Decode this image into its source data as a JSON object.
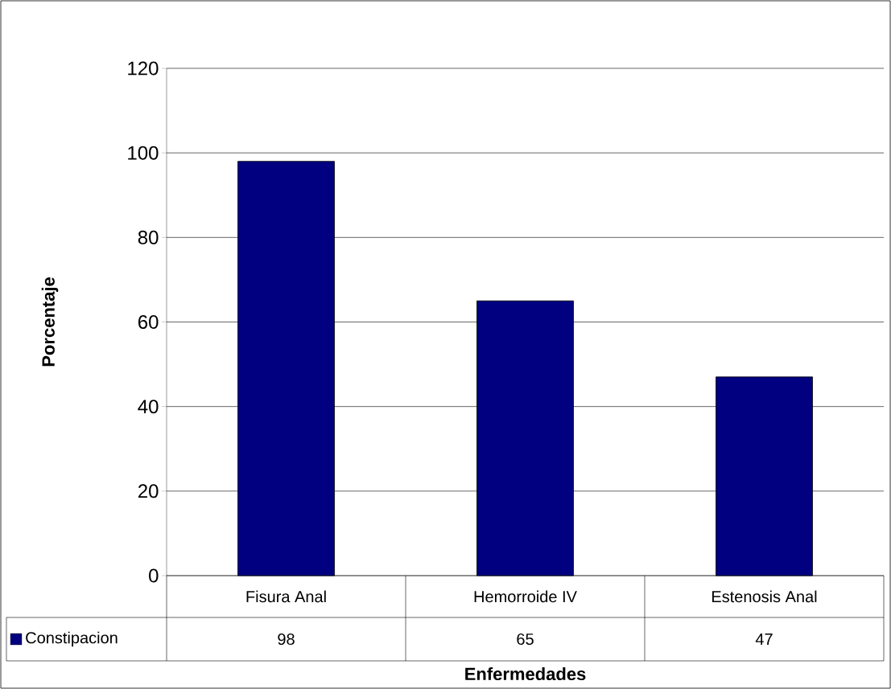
{
  "chart_data": {
    "type": "bar",
    "xlabel": "Enfermedades",
    "ylabel": "Porcentaje",
    "categories": [
      "Fisura Anal",
      "Hemorroide IV",
      "Estenosis Anal"
    ],
    "series": [
      {
        "name": "Constipacion",
        "color": "#000080",
        "values": [
          98,
          65,
          47
        ]
      }
    ],
    "ylim": [
      0,
      120
    ],
    "yticks": [
      0,
      20,
      40,
      60,
      80,
      100,
      120
    ],
    "grid": "y",
    "legend": "bottom left",
    "data_labels": true
  }
}
